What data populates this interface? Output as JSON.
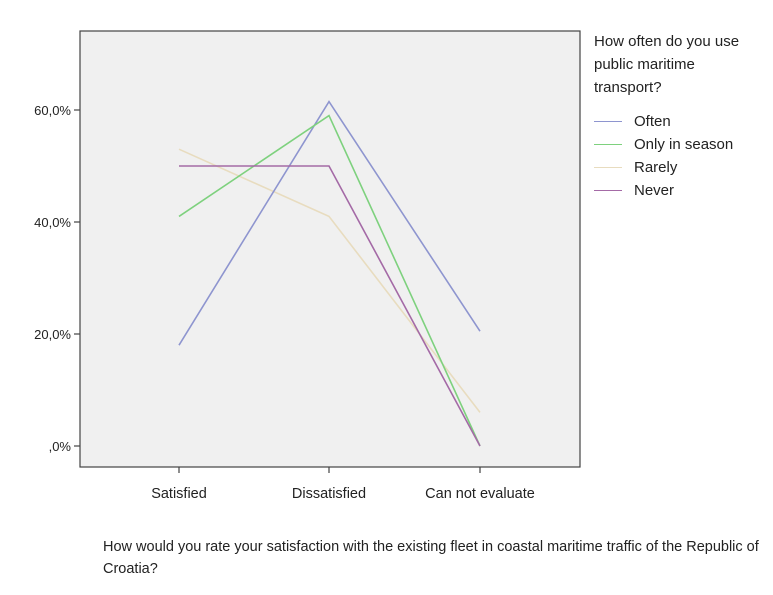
{
  "chart_data": {
    "type": "line",
    "title": "",
    "categories": [
      "Satisfied",
      "Dissatisfied",
      "Can not evaluate"
    ],
    "xlabel": "How would you rate your satisfaction with the existing fleet in coastal maritime traffic of the Republic of Croatia?",
    "ylabel": "",
    "ylim": [
      0,
      75
    ],
    "yticks": [
      0,
      20,
      40,
      60
    ],
    "ytick_labels": [
      ",0%",
      "20,0%",
      "40,0%",
      "60,0%"
    ],
    "grid": false,
    "legend": {
      "title": "How often do you use public maritime transport?",
      "placement": "right"
    },
    "series": [
      {
        "name": "Often",
        "color": "#8e95cf",
        "values": [
          18.0,
          61.5,
          20.5
        ]
      },
      {
        "name": "Only in season",
        "color": "#7ed17e",
        "values": [
          41.0,
          59.0,
          0.0
        ]
      },
      {
        "name": "Rarely",
        "color": "#e8dcbf",
        "values": [
          53.0,
          41.0,
          6.0
        ]
      },
      {
        "name": "Never",
        "color": "#a46aa6",
        "values": [
          50.0,
          50.0,
          0.0
        ]
      }
    ]
  },
  "colors": {
    "plot_background": "#f0f0f0",
    "axis": "#444444"
  }
}
